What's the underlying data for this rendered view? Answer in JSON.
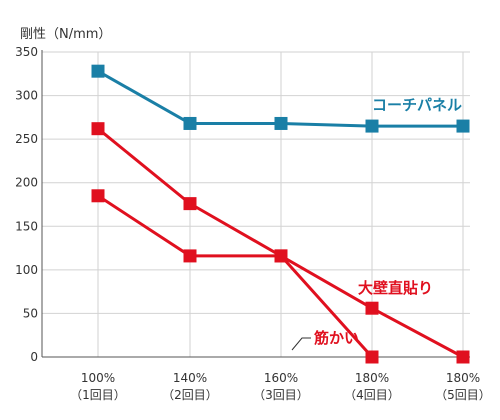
{
  "chart_data": {
    "type": "line",
    "ylabel": "剛性（N/mm）",
    "ylim": [
      0,
      350
    ],
    "yticks": [
      0,
      50,
      100,
      150,
      200,
      250,
      300,
      350
    ],
    "categories": [
      {
        "line1": "100%",
        "line2": "（1回目）"
      },
      {
        "line1": "140%",
        "line2": "（2回目）"
      },
      {
        "line1": "160%",
        "line2": "（3回目）"
      },
      {
        "line1": "180%",
        "line2": "（4回目）"
      },
      {
        "line1": "180%",
        "line2": "（5回目）"
      }
    ],
    "series": [
      {
        "name": "コーチパネル",
        "color": "#1a7fa6",
        "values": [
          328,
          268,
          268,
          265,
          265
        ]
      },
      {
        "name": "大壁直貼り",
        "color": "#e0101f",
        "values": [
          262,
          176,
          116,
          56,
          0
        ]
      },
      {
        "name": "筋かい",
        "color": "#e0101f",
        "values": [
          185,
          116,
          116,
          0,
          null
        ]
      }
    ],
    "grid": true
  }
}
